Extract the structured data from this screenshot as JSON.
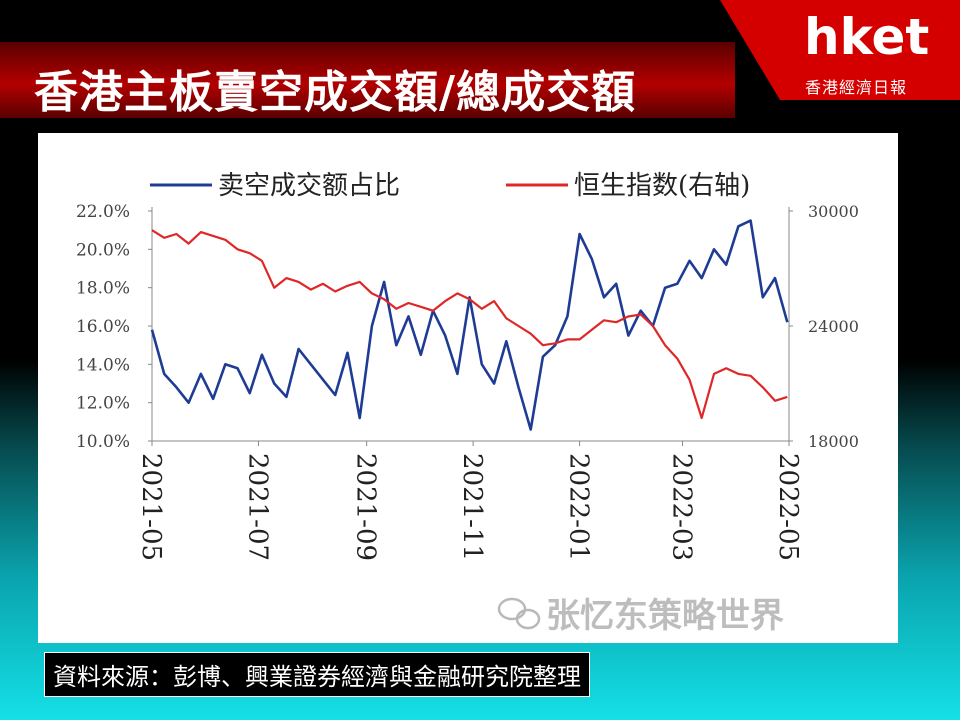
{
  "header": {
    "title": "香港主板賣空成交額/總成交額"
  },
  "logo": {
    "brand": "hket",
    "subtitle": "香港經濟日報"
  },
  "source": "資料來源：彭博、興業證券經濟與金融研究院整理",
  "watermark": "张忆东策略世界",
  "chart_data": {
    "type": "line",
    "title": "",
    "legend": [
      {
        "name": "卖空成交额占比",
        "color": "#1f3c95"
      },
      {
        "name": "恒生指数(右轴)",
        "color": "#e02727"
      }
    ],
    "xlabel": "",
    "x_tick_labels": [
      "2021-05",
      "2021-07",
      "2021-09",
      "2021-11",
      "2022-01",
      "2022-03",
      "2022-05"
    ],
    "x_range": [
      "2021-05-01",
      "2022-05-01"
    ],
    "y_left": {
      "label": "",
      "ylim": [
        10,
        22
      ],
      "ticks": [
        "10.0%",
        "12.0%",
        "14.0%",
        "16.0%",
        "18.0%",
        "20.0%",
        "22.0%"
      ]
    },
    "y_right": {
      "label": "",
      "ylim": [
        18000,
        30000
      ],
      "ticks": [
        "18000",
        "24000",
        "30000"
      ]
    },
    "grid": false,
    "legend_position": "top",
    "series": [
      {
        "name": "卖空成交额占比",
        "axis": "left",
        "color": "#1f3c95",
        "x": [
          "2021-05-01",
          "2021-05-08",
          "2021-05-15",
          "2021-05-22",
          "2021-05-29",
          "2021-06-05",
          "2021-06-12",
          "2021-06-19",
          "2021-06-26",
          "2021-07-03",
          "2021-07-10",
          "2021-07-17",
          "2021-07-24",
          "2021-07-31",
          "2021-08-07",
          "2021-08-14",
          "2021-08-21",
          "2021-08-28",
          "2021-09-04",
          "2021-09-11",
          "2021-09-18",
          "2021-09-25",
          "2021-10-02",
          "2021-10-09",
          "2021-10-16",
          "2021-10-23",
          "2021-10-30",
          "2021-11-06",
          "2021-11-13",
          "2021-11-20",
          "2021-11-27",
          "2021-12-04",
          "2021-12-11",
          "2021-12-18",
          "2021-12-25",
          "2022-01-01",
          "2022-01-08",
          "2022-01-15",
          "2022-01-22",
          "2022-01-29",
          "2022-02-05",
          "2022-02-12",
          "2022-02-19",
          "2022-02-26",
          "2022-03-05",
          "2022-03-12",
          "2022-03-19",
          "2022-03-26",
          "2022-04-02",
          "2022-04-09",
          "2022-04-16",
          "2022-04-23",
          "2022-04-30"
        ],
        "values": [
          15.8,
          13.5,
          12.8,
          12.0,
          13.5,
          12.2,
          14.0,
          13.8,
          12.5,
          14.5,
          13.0,
          12.3,
          14.8,
          14.0,
          13.2,
          12.4,
          14.6,
          11.2,
          16.0,
          18.3,
          15.0,
          16.5,
          14.5,
          16.8,
          15.5,
          13.5,
          17.5,
          14.0,
          13.0,
          15.2,
          12.8,
          10.6,
          14.4,
          15.0,
          16.5,
          20.8,
          19.5,
          17.5,
          18.2,
          15.5,
          16.8,
          16.0,
          18.0,
          18.2,
          19.4,
          18.5,
          20.0,
          19.2,
          21.2,
          21.5,
          17.5,
          18.5,
          16.2
        ]
      },
      {
        "name": "恒生指数(右轴)",
        "axis": "right",
        "color": "#e02727",
        "x": [
          "2021-05-01",
          "2021-05-08",
          "2021-05-15",
          "2021-05-22",
          "2021-05-29",
          "2021-06-05",
          "2021-06-12",
          "2021-06-19",
          "2021-06-26",
          "2021-07-03",
          "2021-07-10",
          "2021-07-17",
          "2021-07-24",
          "2021-07-31",
          "2021-08-07",
          "2021-08-14",
          "2021-08-21",
          "2021-08-28",
          "2021-09-04",
          "2021-09-11",
          "2021-09-18",
          "2021-09-25",
          "2021-10-02",
          "2021-10-09",
          "2021-10-16",
          "2021-10-23",
          "2021-10-30",
          "2021-11-06",
          "2021-11-13",
          "2021-11-20",
          "2021-11-27",
          "2021-12-04",
          "2021-12-11",
          "2021-12-18",
          "2021-12-25",
          "2022-01-01",
          "2022-01-08",
          "2022-01-15",
          "2022-01-22",
          "2022-01-29",
          "2022-02-05",
          "2022-02-12",
          "2022-02-19",
          "2022-02-26",
          "2022-03-05",
          "2022-03-12",
          "2022-03-19",
          "2022-03-26",
          "2022-04-02",
          "2022-04-09",
          "2022-04-16",
          "2022-04-23",
          "2022-04-30"
        ],
        "values": [
          29000,
          28600,
          28800,
          28300,
          28900,
          28700,
          28500,
          28000,
          27800,
          27400,
          26000,
          26500,
          26300,
          25900,
          26200,
          25800,
          26100,
          26300,
          25700,
          25400,
          24900,
          25200,
          25000,
          24800,
          25300,
          25700,
          25400,
          24900,
          25300,
          24400,
          24000,
          23600,
          23000,
          23100,
          23300,
          23300,
          23800,
          24300,
          24200,
          24500,
          24600,
          24000,
          23000,
          22300,
          21200,
          19200,
          21500,
          21800,
          21500,
          21400,
          20800,
          20100,
          20300
        ]
      }
    ]
  }
}
